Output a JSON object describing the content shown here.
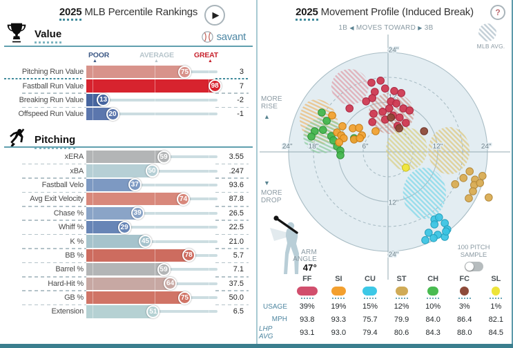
{
  "left_panel": {
    "title_year": "2025",
    "title_rest": "MLB Percentile Rankings",
    "brand": "savant",
    "axis": {
      "poor": "POOR",
      "average": "AVERAGE",
      "great": "GREAT"
    }
  },
  "right_panel": {
    "title_year": "2025",
    "title_rest": "Movement Profile (Induced Break)",
    "help": "?",
    "direction": {
      "left": "1B",
      "mid": "MOVES TOWARD",
      "right": "3B"
    },
    "mlb_avg_label": "MLB AVG.",
    "more_rise_1": "MORE",
    "more_rise_2": "RISE",
    "more_drop_1": "MORE",
    "more_drop_2": "DROP",
    "arm": {
      "l1": "ARM",
      "l2": "ANGLE",
      "value": "47°"
    },
    "sample": {
      "l1": "100 PITCH",
      "l2": "SAMPLE",
      "state": "off"
    },
    "table": {
      "row_labels": {
        "usage": "USAGE",
        "mph": "MPH",
        "lhp": "LHP AVG"
      },
      "columns": [
        {
          "code": "FF",
          "color": "#d14f6d",
          "usage": "39%",
          "mph": "93.8",
          "lhp": "93.1",
          "pw": 30
        },
        {
          "code": "SI",
          "color": "#f3a02f",
          "usage": "19%",
          "mph": "93.3",
          "lhp": "93.0",
          "pw": 21
        },
        {
          "code": "CU",
          "color": "#3cc8e6",
          "usage": "15%",
          "mph": "75.7",
          "lhp": "79.4",
          "pw": 21
        },
        {
          "code": "ST",
          "color": "#d0ab57",
          "usage": "12%",
          "mph": "79.9",
          "lhp": "80.6",
          "pw": 18
        },
        {
          "code": "CH",
          "color": "#49bb51",
          "usage": "10%",
          "mph": "84.0",
          "lhp": "84.3",
          "pw": 16
        },
        {
          "code": "FC",
          "color": "#8e4b3a",
          "usage": "3%",
          "mph": "86.4",
          "lhp": "88.0",
          "pw": 13
        },
        {
          "code": "SL",
          "color": "#ede43a",
          "usage": "1%",
          "mph": "82.1",
          "lhp": "84.5",
          "pw": 12
        }
      ]
    }
  },
  "chart_data": [
    {
      "type": "bar",
      "title": "2025 MLB Percentile Rankings",
      "note": "horizontal percentile bars, bubble = MLB percentile, right column = raw value",
      "xlim": [
        0,
        100
      ],
      "sections": [
        {
          "name": "Value",
          "rows": [
            {
              "label": "Pitching Run Value",
              "percentile": 75,
              "value": "3",
              "color": "#d8938b",
              "sep": "teal"
            },
            {
              "label": "Fastball Run Value",
              "percentile": 98,
              "value": "7",
              "color": "#d7232e"
            },
            {
              "label": "Breaking Run Value",
              "percentile": 13,
              "value": "-2",
              "color": "#47659f"
            },
            {
              "label": "Offspeed Run Value",
              "percentile": 20,
              "value": "-1",
              "color": "#5b76ad"
            }
          ]
        },
        {
          "name": "Pitching",
          "rows": [
            {
              "label": "xERA",
              "percentile": 59,
              "value": "3.55",
              "color": "#b3b5b6"
            },
            {
              "label": "xBA",
              "percentile": 50,
              "value": ".247",
              "color": "#b6cfd5"
            },
            {
              "label": "Fastball Velo",
              "percentile": 37,
              "value": "93.6",
              "color": "#7d99c2"
            },
            {
              "label": "Avg Exit Velocity",
              "percentile": 74,
              "value": "87.8",
              "color": "#d8887b"
            },
            {
              "label": "Chase %",
              "percentile": 39,
              "value": "26.5",
              "color": "#8aa4c7"
            },
            {
              "label": "Whiff %",
              "percentile": 29,
              "value": "22.5",
              "color": "#6785b6"
            },
            {
              "label": "K %",
              "percentile": 45,
              "value": "21.0",
              "color": "#a6c3cc"
            },
            {
              "label": "BB %",
              "percentile": 78,
              "value": "5.7",
              "color": "#cd6c5f"
            },
            {
              "label": "Barrel %",
              "percentile": 59,
              "value": "7.1",
              "color": "#b3b5b6"
            },
            {
              "label": "Hard-Hit %",
              "percentile": 64,
              "value": "37.5",
              "color": "#c7a8a3"
            },
            {
              "label": "GB %",
              "percentile": 75,
              "value": "50.0",
              "color": "#d07466"
            },
            {
              "label": "Extension",
              "percentile": 51,
              "value": "6.5",
              "color": "#b5d1d3"
            }
          ]
        }
      ]
    },
    {
      "type": "scatter",
      "title": "2025 Movement Profile (Induced Break)",
      "xlabel": "horizontal break (inches, toward 1B negative / 3B positive)",
      "ylabel": "induced vertical break (inches, rise positive / drop negative)",
      "arm_angle_deg": 47,
      "rings": [
        {
          "r": 6,
          "dash": true
        },
        {
          "r": 12,
          "dash": false
        },
        {
          "r": 18,
          "dash": true
        },
        {
          "r": 24,
          "dash": false
        }
      ],
      "h_ticks": [
        {
          "x": -24.3,
          "label": "24\""
        },
        {
          "x": -18,
          "label": "18\""
        },
        {
          "x": -5.5,
          "label": "6\""
        },
        {
          "x": 12,
          "label": "12\""
        },
        {
          "x": 23.7,
          "label": "24\""
        }
      ],
      "v_ticks": [
        {
          "y": 24.7,
          "label": "24\""
        },
        {
          "y": 13.3,
          "label": "12\""
        },
        {
          "y": -12.2,
          "label": "12\""
        },
        {
          "y": -24.7,
          "label": "24\""
        }
      ],
      "mlb_avg_ellipses": [
        {
          "code": "FF",
          "x": -9.2,
          "y": 15.7,
          "rx": 4.5,
          "ry": 4.3,
          "rot": 0,
          "color": "#dfa0aa"
        },
        {
          "code": "FC",
          "x": 0.8,
          "y": 9.3,
          "rx": 5.5,
          "ry": 5.0,
          "rot": 0,
          "color": "#cf9a8f"
        },
        {
          "code": "SI",
          "x": -16.7,
          "y": 7.3,
          "rx": 4.5,
          "ry": 5.5,
          "rot": -20,
          "color": "#ecba74"
        },
        {
          "code": "CH",
          "x": -15.7,
          "y": 4.0,
          "rx": 4.8,
          "ry": 4.3,
          "rot": -20,
          "color": "#8ecb9f"
        },
        {
          "code": "SL",
          "x": 4.5,
          "y": 0.7,
          "rx": 5.0,
          "ry": 5.2,
          "rot": 0,
          "color": "#d9cf86"
        },
        {
          "code": "ST",
          "x": 14.7,
          "y": 0.3,
          "rx": 5.0,
          "ry": 5.7,
          "rot": 0,
          "color": "#ddc87f"
        },
        {
          "code": "CU",
          "x": 8.8,
          "y": -10.0,
          "rx": 5.2,
          "ry": 6.2,
          "rot": 0,
          "color": "#7ed7e8"
        }
      ],
      "series": [
        {
          "code": "CH",
          "fill": "#43b64c",
          "stroke": "#31913a",
          "points": [
            [
              -16.0,
              9.5
            ],
            [
              -14.8,
              7.5
            ],
            [
              -17.7,
              5.0
            ],
            [
              -15.7,
              5.3
            ],
            [
              -18.5,
              3.7
            ],
            [
              -13.7,
              3.8
            ],
            [
              -13.2,
              2.8
            ],
            [
              -12.3,
              1.3
            ],
            [
              -11.5,
              0.3
            ],
            [
              -8.2,
              3.3
            ],
            [
              -11.5,
              -0.8
            ]
          ]
        },
        {
          "code": "SI",
          "fill": "#f2a130",
          "stroke": "#c57d16",
          "points": [
            [
              -13.5,
              8.8
            ],
            [
              -11.0,
              6.2
            ],
            [
              -12.3,
              4.7
            ],
            [
              -11.3,
              4.0
            ],
            [
              -8.5,
              5.7
            ],
            [
              -7.0,
              5.8
            ],
            [
              -6.3,
              4.0
            ],
            [
              -8.2,
              3.0
            ],
            [
              -10.7,
              3.3
            ],
            [
              -11.8,
              2.3
            ],
            [
              -6.8,
              3.3
            ],
            [
              -3.0,
              5.0
            ]
          ]
        },
        {
          "code": "ST",
          "fill": "#d9ab51",
          "stroke": "#b2883a",
          "points": [
            [
              19.7,
              -4.7
            ],
            [
              18.2,
              -6.3
            ],
            [
              16.2,
              -7.8
            ],
            [
              21.0,
              -6.7
            ],
            [
              22.8,
              -5.8
            ],
            [
              20.8,
              -8.0
            ],
            [
              20.5,
              -9.5
            ],
            [
              19.5,
              -11.2
            ],
            [
              24.3,
              -11.0
            ],
            [
              22.2,
              -7.5
            ]
          ]
        },
        {
          "code": "CU",
          "fill": "#3ac4e3",
          "stroke": "#249fbc",
          "points": [
            [
              11.2,
              -16.3
            ],
            [
              12.3,
              -15.8
            ],
            [
              13.7,
              -17.2
            ],
            [
              14.3,
              -18.7
            ],
            [
              11.2,
              -17.5
            ],
            [
              9.8,
              -19.5
            ],
            [
              12.0,
              -20.0
            ],
            [
              13.7,
              -20.5
            ],
            [
              11.0,
              -20.8
            ],
            [
              9.0,
              -21.3
            ],
            [
              14.0,
              -19.2
            ]
          ]
        },
        {
          "code": "SL",
          "fill": "#f1e636",
          "stroke": "#c8bd1e",
          "points": [
            [
              4.3,
              -3.8
            ]
          ]
        },
        {
          "code": "FF",
          "fill": "#cf3750",
          "stroke": "#aa2742",
          "points": [
            [
              -1.8,
              17.2
            ],
            [
              -4.0,
              16.7
            ],
            [
              -0.7,
              15.3
            ],
            [
              -3.2,
              14.5
            ],
            [
              3.2,
              14.2
            ],
            [
              1.5,
              14.7
            ],
            [
              -3.8,
              13.0
            ],
            [
              0.7,
              12.2
            ],
            [
              2.0,
              11.7
            ],
            [
              3.7,
              10.5
            ],
            [
              0.3,
              10.5
            ],
            [
              5.2,
              10.0
            ],
            [
              -1.3,
              9.7
            ],
            [
              -3.5,
              9.2
            ],
            [
              1.2,
              8.8
            ],
            [
              2.8,
              8.3
            ],
            [
              -0.7,
              7.8
            ],
            [
              -3.8,
              7.2
            ],
            [
              4.3,
              7.0
            ],
            [
              2.3,
              6.3
            ],
            [
              -9.3,
              10.5
            ],
            [
              -5.3,
              12.2
            ]
          ]
        },
        {
          "code": "FC",
          "fill": "#8e4837",
          "stroke": "#6d3428",
          "points": [
            [
              0.7,
              8.3
            ],
            [
              2.7,
              5.7
            ],
            [
              8.7,
              5.0
            ]
          ]
        }
      ]
    }
  ]
}
